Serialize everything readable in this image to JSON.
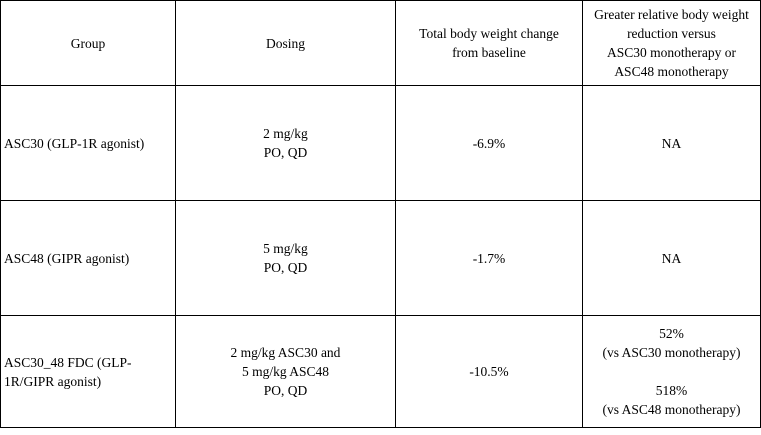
{
  "table": {
    "headers": [
      [
        "Group"
      ],
      [
        "Dosing"
      ],
      [
        "Total body weight change",
        "from baseline"
      ],
      [
        "Greater relative body weight",
        "reduction versus",
        "ASC30 monotherapy or",
        "ASC48 monotherapy"
      ]
    ],
    "rows": [
      {
        "group": [
          "ASC30 (GLP-1R agonist)"
        ],
        "dosing": [
          "2 mg/kg",
          "PO, QD"
        ],
        "change": "-6.9%",
        "relative": {
          "a": [
            "NA"
          ],
          "b": []
        }
      },
      {
        "group": [
          "ASC48 (GIPR agonist)"
        ],
        "dosing": [
          "5 mg/kg",
          "PO, QD"
        ],
        "change": "-1.7%",
        "relative": {
          "a": [
            "NA"
          ],
          "b": []
        }
      },
      {
        "group": [
          "ASC30_48 FDC (GLP-",
          "1R/GIPR agonist)"
        ],
        "dosing": [
          "2 mg/kg ASC30 and",
          "5 mg/kg ASC48",
          "PO, QD"
        ],
        "change": "-10.5%",
        "relative": {
          "a": [
            "52%",
            "(vs ASC30 monotherapy)"
          ],
          "b": [
            "518%",
            "(vs ASC48 monotherapy)"
          ]
        }
      }
    ]
  }
}
